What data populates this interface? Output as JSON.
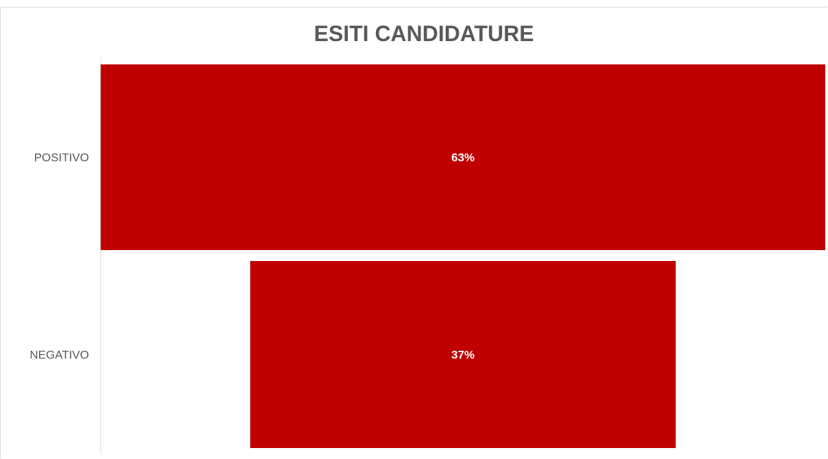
{
  "chart_data": {
    "type": "bar",
    "orientation": "horizontal",
    "layout": "funnel",
    "title": "ESITI CANDIDATURE",
    "categories": [
      "POSITIVO",
      "NEGATIVO"
    ],
    "values": [
      63,
      37
    ],
    "value_labels": [
      "63%",
      "37%"
    ],
    "value_unit": "%",
    "grid": false,
    "legend": "none",
    "colors": {
      "bar": "#c00000",
      "label": "#ffffff",
      "category_text": "#595959",
      "title": "#595959",
      "axis": "#d9d9d9"
    }
  }
}
